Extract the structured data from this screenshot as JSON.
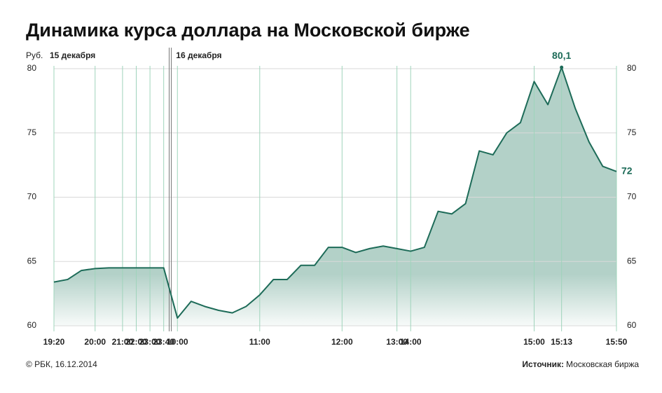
{
  "chart_data": {
    "type": "area",
    "title": "Динамика курса доллара на Московской бирже",
    "y_label": "Руб.",
    "days": [
      {
        "label": "15 декабря",
        "first": 0
      },
      {
        "label": "16 декабря",
        "first": 9
      }
    ],
    "categories": [
      "19:20",
      null,
      null,
      "20:00",
      null,
      "21:00",
      "22:00",
      "23:00",
      "23:40",
      "10:00",
      null,
      null,
      null,
      null,
      null,
      "11:00",
      null,
      null,
      null,
      null,
      null,
      "12:00",
      null,
      null,
      null,
      "13:00",
      "14:00",
      null,
      null,
      null,
      null,
      null,
      null,
      null,
      null,
      "15:00",
      null,
      "15:13",
      null,
      null,
      null,
      "15:50"
    ],
    "values": [
      63.4,
      63.6,
      64.3,
      64.45,
      64.5,
      64.5,
      64.5,
      64.5,
      64.5,
      60.6,
      61.9,
      61.5,
      61.2,
      61.0,
      61.5,
      62.4,
      63.6,
      63.6,
      64.7,
      64.7,
      66.1,
      66.1,
      65.7,
      66.0,
      66.2,
      66.0,
      65.8,
      66.1,
      68.9,
      68.7,
      69.5,
      73.6,
      73.3,
      75.0,
      75.8,
      79.0,
      77.2,
      80.1,
      76.9,
      74.3,
      72.4,
      72.0
    ],
    "value_labels": [
      null,
      null,
      null,
      null,
      null,
      null,
      null,
      null,
      null,
      null,
      null,
      null,
      null,
      null,
      null,
      null,
      null,
      null,
      null,
      null,
      null,
      null,
      null,
      null,
      null,
      null,
      null,
      null,
      null,
      null,
      null,
      null,
      null,
      null,
      null,
      null,
      null,
      "80,1",
      null,
      null,
      null,
      "72"
    ],
    "color": "#1d6b58",
    "fill_color": "#b3d1c8",
    "ylim": [
      60,
      80
    ],
    "yticks": [
      60,
      65,
      70,
      75,
      80
    ],
    "grid": true,
    "footer": {
      "credit": "© РБК, 16.12.2014",
      "source_label": "Источник:",
      "source": "Московская биржа"
    }
  }
}
